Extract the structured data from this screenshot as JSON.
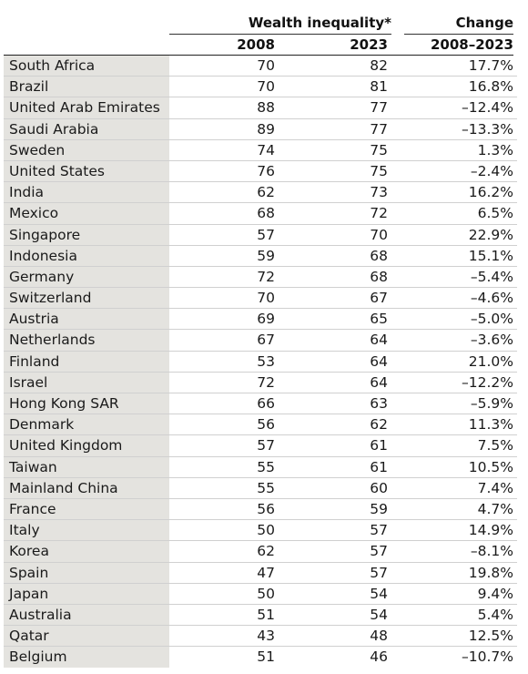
{
  "header": {
    "group_title": "Wealth inequality*",
    "year1": "2008",
    "year2": "2023",
    "change_title": "Change",
    "change_range": "2008–2023"
  },
  "chart_data": {
    "type": "table",
    "columns": [
      "",
      "2008",
      "2023",
      "2008–2023"
    ],
    "rows": [
      {
        "country": "South Africa",
        "v2008": "70",
        "v2023": "82",
        "change": "17.7%"
      },
      {
        "country": "Brazil",
        "v2008": "70",
        "v2023": "81",
        "change": "16.8%"
      },
      {
        "country": "United Arab Emirates",
        "v2008": "88",
        "v2023": "77",
        "change": "–12.4%"
      },
      {
        "country": "Saudi Arabia",
        "v2008": "89",
        "v2023": "77",
        "change": "–13.3%"
      },
      {
        "country": "Sweden",
        "v2008": "74",
        "v2023": "75",
        "change": "1.3%"
      },
      {
        "country": "United States",
        "v2008": "76",
        "v2023": "75",
        "change": "–2.4%"
      },
      {
        "country": "India",
        "v2008": "62",
        "v2023": "73",
        "change": "16.2%"
      },
      {
        "country": "Mexico",
        "v2008": "68",
        "v2023": "72",
        "change": "6.5%"
      },
      {
        "country": "Singapore",
        "v2008": "57",
        "v2023": "70",
        "change": "22.9%"
      },
      {
        "country": "Indonesia",
        "v2008": "59",
        "v2023": "68",
        "change": "15.1%"
      },
      {
        "country": "Germany",
        "v2008": "72",
        "v2023": "68",
        "change": "–5.4%"
      },
      {
        "country": "Switzerland",
        "v2008": "70",
        "v2023": "67",
        "change": "–4.6%"
      },
      {
        "country": "Austria",
        "v2008": "69",
        "v2023": "65",
        "change": "–5.0%"
      },
      {
        "country": "Netherlands",
        "v2008": "67",
        "v2023": "64",
        "change": "–3.6%"
      },
      {
        "country": "Finland",
        "v2008": "53",
        "v2023": "64",
        "change": "21.0%"
      },
      {
        "country": "Israel",
        "v2008": "72",
        "v2023": "64",
        "change": "–12.2%"
      },
      {
        "country": "Hong Kong SAR",
        "v2008": "66",
        "v2023": "63",
        "change": "–5.9%"
      },
      {
        "country": "Denmark",
        "v2008": "56",
        "v2023": "62",
        "change": "11.3%"
      },
      {
        "country": "United Kingdom",
        "v2008": "57",
        "v2023": "61",
        "change": "7.5%"
      },
      {
        "country": "Taiwan",
        "v2008": "55",
        "v2023": "61",
        "change": "10.5%"
      },
      {
        "country": "Mainland China",
        "v2008": "55",
        "v2023": "60",
        "change": "7.4%"
      },
      {
        "country": "France",
        "v2008": "56",
        "v2023": "59",
        "change": "4.7%"
      },
      {
        "country": "Italy",
        "v2008": "50",
        "v2023": "57",
        "change": "14.9%"
      },
      {
        "country": "Korea",
        "v2008": "62",
        "v2023": "57",
        "change": "–8.1%"
      },
      {
        "country": "Spain",
        "v2008": "47",
        "v2023": "57",
        "change": "19.8%"
      },
      {
        "country": "Japan",
        "v2008": "50",
        "v2023": "54",
        "change": "9.4%"
      },
      {
        "country": "Australia",
        "v2008": "51",
        "v2023": "54",
        "change": "5.4%"
      },
      {
        "country": "Qatar",
        "v2008": "43",
        "v2023": "48",
        "change": "12.5%"
      },
      {
        "country": "Belgium",
        "v2008": "51",
        "v2023": "46",
        "change": "–10.7%"
      }
    ]
  }
}
